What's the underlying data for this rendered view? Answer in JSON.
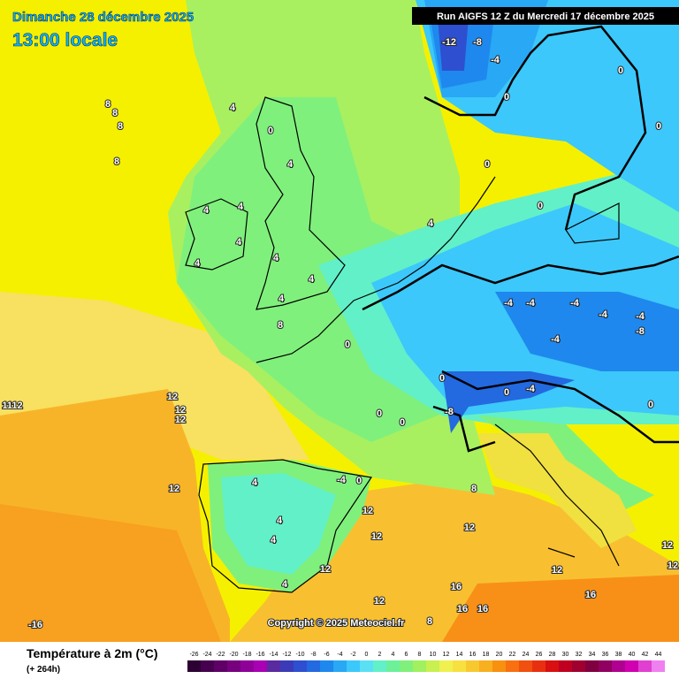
{
  "header": {
    "date": "Dimanche 28 décembre 2025",
    "time": "13:00 locale",
    "run": "Run AIGFS 12 Z du Mercredi 17 décembre 2025"
  },
  "copyright": "Copyright © 2025 Meteociel.fr",
  "map": {
    "labels": [
      "-12",
      "-8",
      "-4",
      "0",
      "0",
      "4",
      "4",
      "4",
      "4",
      "4",
      "4",
      "4",
      "4",
      "4",
      "4",
      "0",
      "0",
      "0",
      "0",
      "-4",
      "-4",
      "-4",
      "-4",
      "-4",
      "-8",
      "-4",
      "0",
      "0",
      "-4",
      "-8",
      "0",
      "0",
      "0",
      "12",
      "12",
      "12",
      "1112",
      "8",
      "8",
      "8",
      "8",
      "8",
      "0",
      "4",
      "4",
      "4",
      "-4",
      "0",
      "12",
      "12",
      "12",
      "12",
      "4",
      "12",
      "8",
      "12",
      "16",
      "16",
      "16",
      "16",
      "12",
      "12",
      "12",
      "8",
      "-16"
    ]
  },
  "legend": {
    "title": "Température à 2m (°C)",
    "subtitle": "(+ 264h)",
    "ticks": [
      -26,
      -24,
      -22,
      -20,
      -18,
      -16,
      -14,
      -12,
      -10,
      -8,
      -6,
      -4,
      -2,
      0,
      2,
      4,
      6,
      8,
      10,
      12,
      14,
      16,
      18,
      20,
      22,
      24,
      26,
      28,
      30,
      32,
      34,
      36,
      38,
      40,
      42,
      44
    ],
    "colors": [
      "#2d0033",
      "#46004f",
      "#5e0066",
      "#77007f",
      "#8f0099",
      "#a800b2",
      "#5a2aa0",
      "#3b3bb8",
      "#2e4fd0",
      "#2369e0",
      "#1e88ee",
      "#28a8f5",
      "#3cc8fa",
      "#5ae0f5",
      "#62f0c8",
      "#6cf09a",
      "#80f07c",
      "#a0f060",
      "#c8f050",
      "#f0f050",
      "#f8e040",
      "#f8c830",
      "#f8b020",
      "#f89010",
      "#f87010",
      "#f05010",
      "#e83010",
      "#d81010",
      "#c00020",
      "#a00030",
      "#800040",
      "#900060",
      "#b00090",
      "#d000b0",
      "#e040d0",
      "#f080f0"
    ]
  }
}
